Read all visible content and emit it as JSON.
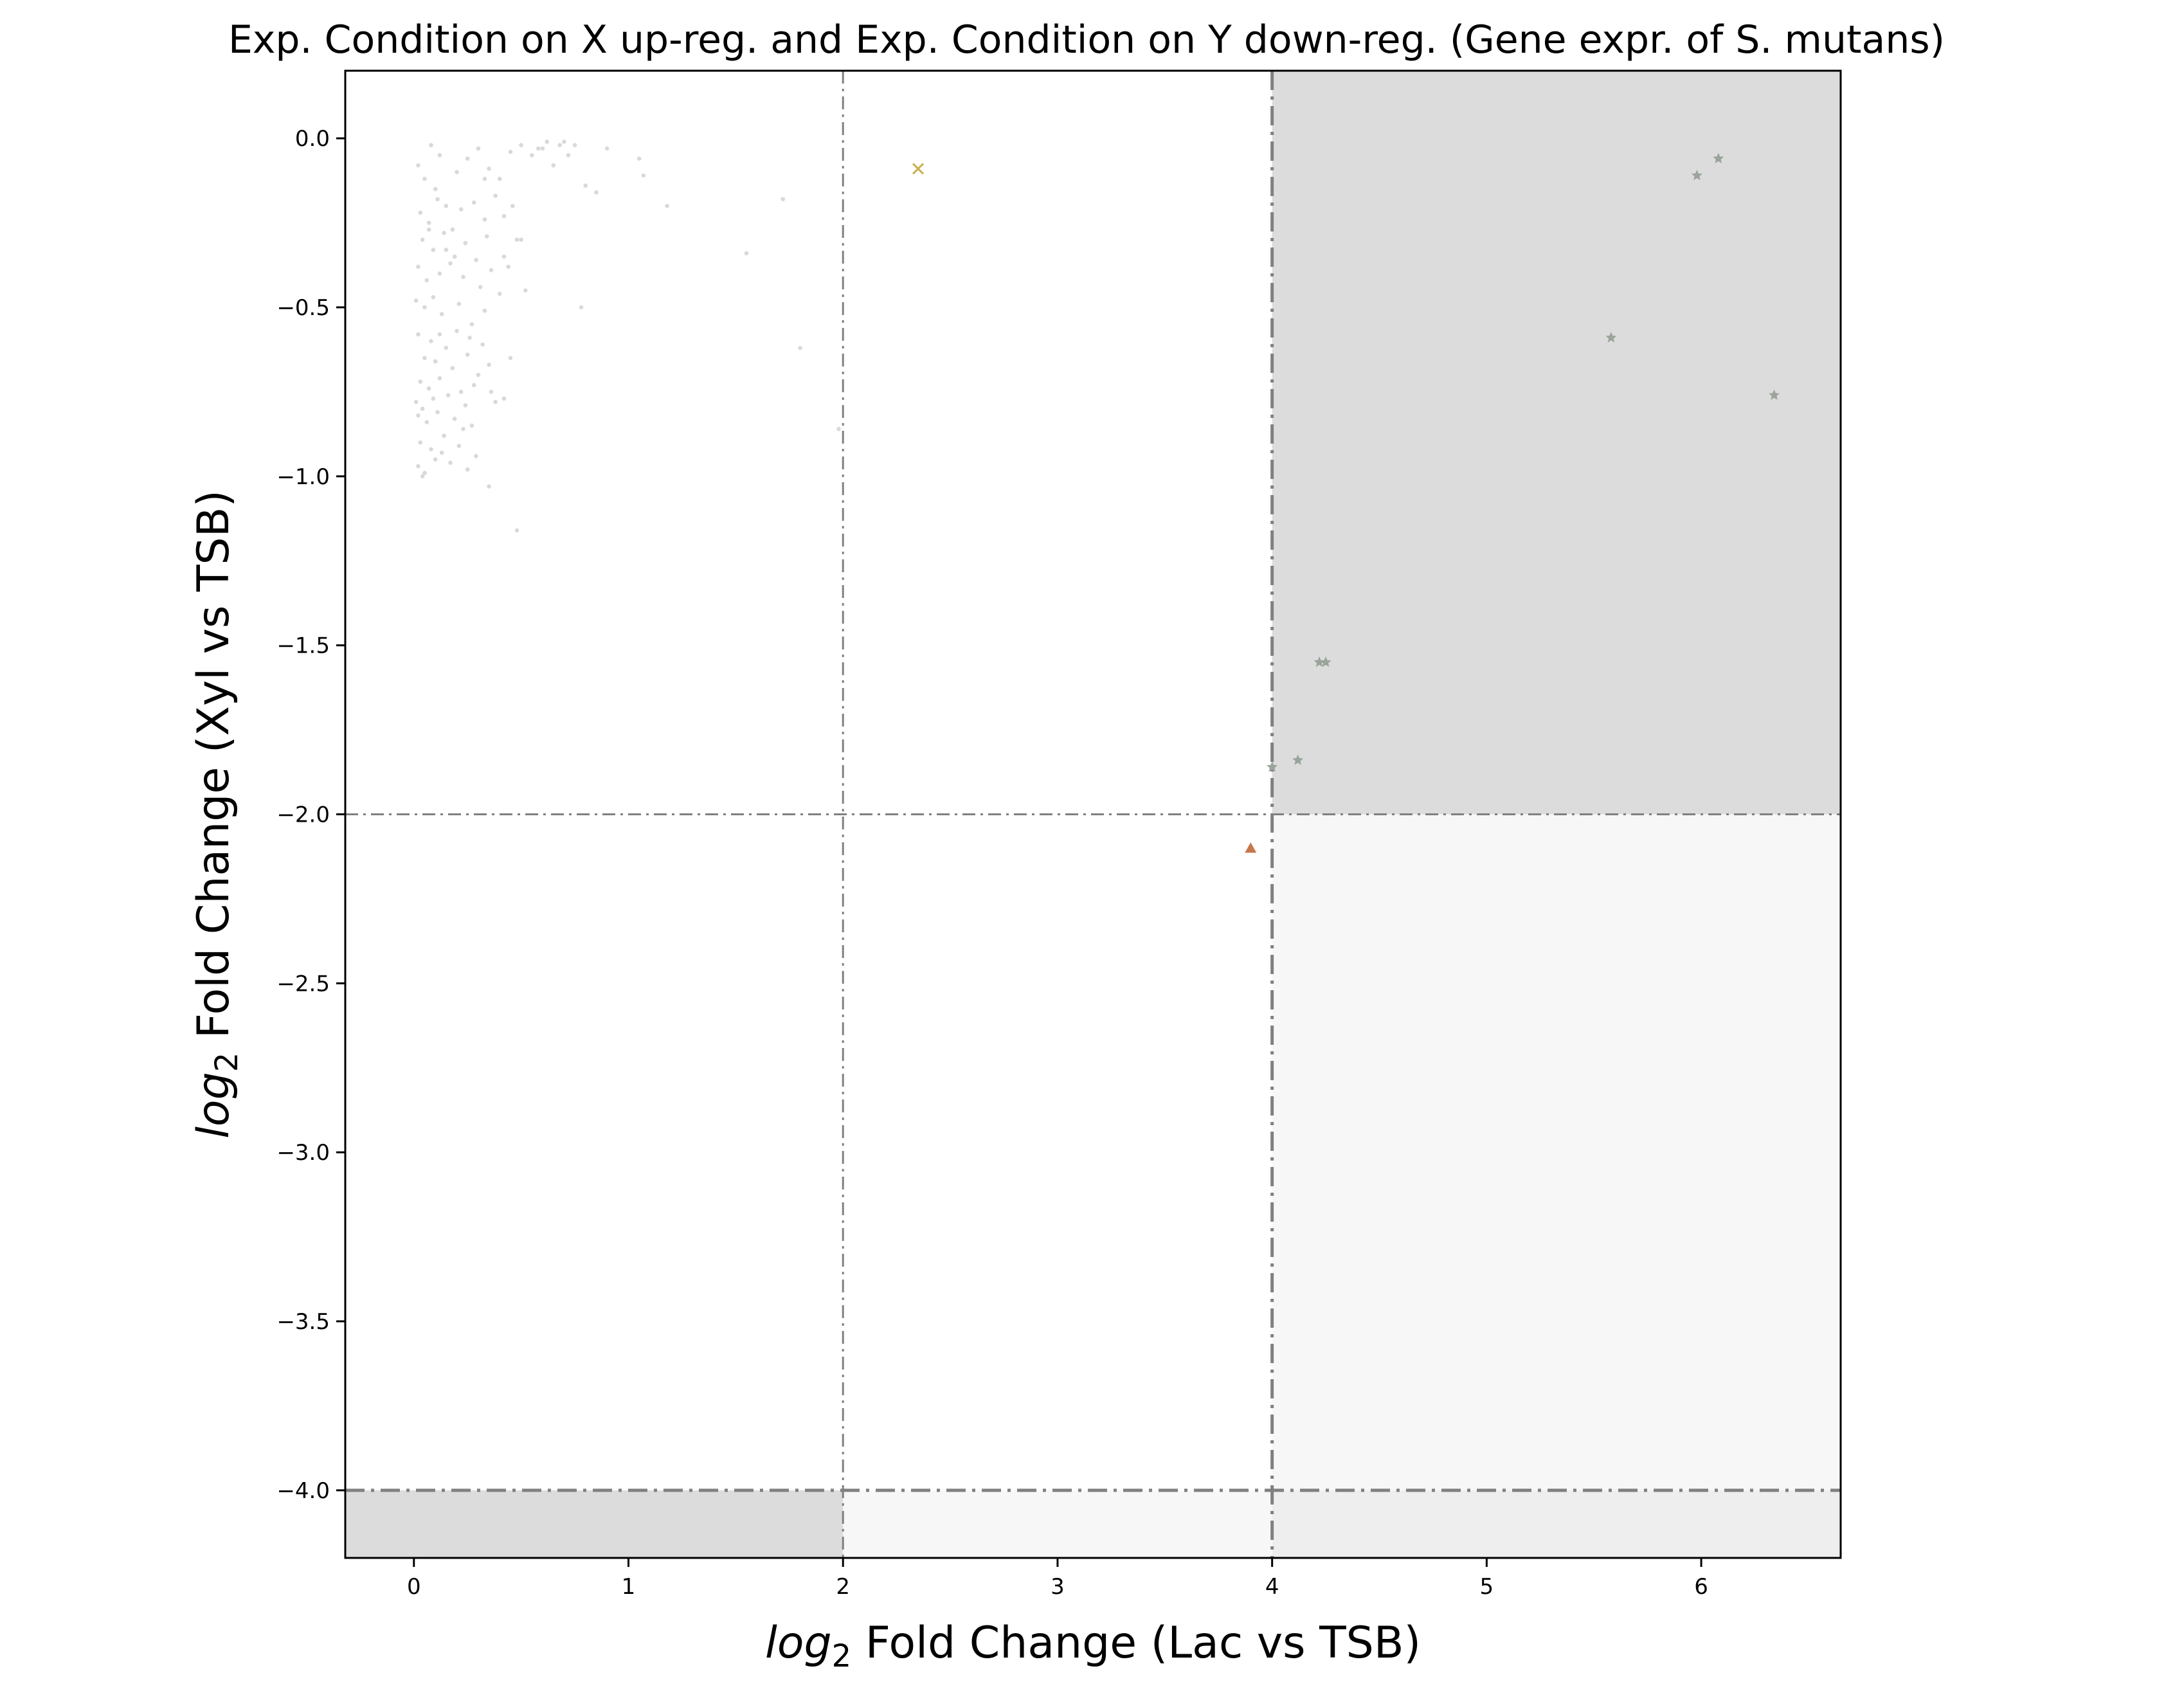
{
  "chart_data": {
    "type": "scatter",
    "title": "Exp. Condition on X up-reg. and Exp. Condition on Y down-reg. (Gene expr. of S. mutans)",
    "xlabel": {
      "math": "log",
      "sub": "2",
      "rest": " Fold Change (Lac vs TSB)"
    },
    "ylabel": {
      "math": "log",
      "sub": "2",
      "rest": " Fold Change (Xyl vs TSB)"
    },
    "xlim": [
      -0.32,
      6.65
    ],
    "ylim": [
      -4.2,
      0.2
    ],
    "xticks": [
      0,
      1,
      2,
      3,
      4,
      5,
      6
    ],
    "xtick_labels": [
      "0",
      "1",
      "2",
      "3",
      "4",
      "5",
      "6"
    ],
    "yticks": [
      0.0,
      -0.5,
      -1.0,
      -1.5,
      -2.0,
      -2.5,
      -3.0,
      -3.5,
      -4.0
    ],
    "ytick_labels": [
      "0.0",
      "−0.5",
      "−1.0",
      "−1.5",
      "−2.0",
      "−2.5",
      "−3.0",
      "−3.5",
      "−4.0"
    ],
    "grid": false,
    "legend": "none",
    "thresholds": {
      "vertical": [
        {
          "x": 2,
          "style": "thin"
        },
        {
          "x": 4,
          "style": "thick"
        }
      ],
      "horizontal": [
        {
          "y": -2,
          "style": "thin"
        },
        {
          "y": -4,
          "style": "thick"
        }
      ]
    },
    "regions": [
      {
        "x": [
          4,
          6.65
        ],
        "y": [
          -2,
          0.2
        ],
        "color": "#dcdcdc"
      },
      {
        "x": [
          4,
          6.65
        ],
        "y": [
          -4,
          -2
        ],
        "color": "#f7f7f7"
      },
      {
        "x": [
          4,
          6.65
        ],
        "y": [
          -4.2,
          -4
        ],
        "color": "#eeeeee"
      },
      {
        "x": [
          2,
          4
        ],
        "y": [
          -4.2,
          -4
        ],
        "color": "#f7f7f7"
      },
      {
        "x": [
          -0.32,
          2
        ],
        "y": [
          -4.2,
          -4
        ],
        "color": "#dcdcdc"
      }
    ],
    "series": [
      {
        "marker": "dot",
        "color": "#d9d9d9",
        "x": [
          0.02,
          0.05,
          0.08,
          0.1,
          0.12,
          0.15,
          0.2,
          0.25,
          0.3,
          0.35,
          0.4,
          0.45,
          0.5,
          0.55,
          0.6,
          0.65,
          0.7,
          0.75,
          0.8,
          0.03,
          0.07,
          0.11,
          0.18,
          0.22,
          0.28,
          0.33,
          0.38,
          0.42,
          0.48,
          0.04,
          0.09,
          0.14,
          0.19,
          0.24,
          0.29,
          0.34,
          0.02,
          0.06,
          0.12,
          0.17,
          0.23,
          0.31,
          0.36,
          0.44,
          0.52,
          0.01,
          0.05,
          0.09,
          0.13,
          0.21,
          0.27,
          0.33,
          0.4,
          0.02,
          0.08,
          0.15,
          0.2,
          0.26,
          0.32,
          0.05,
          0.1,
          0.18,
          0.25,
          0.3,
          0.35,
          0.03,
          0.07,
          0.12,
          0.22,
          0.28,
          0.01,
          0.04,
          0.09,
          0.16,
          0.24,
          0.38,
          0.02,
          0.06,
          0.11,
          0.19,
          0.27,
          0.42,
          0.03,
          0.08,
          0.14,
          0.21,
          0.29,
          0.02,
          0.05,
          0.1,
          0.17,
          0.25,
          0.35,
          0.04,
          0.13,
          0.23,
          0.07,
          0.15,
          0.33,
          0.12,
          0.45,
          0.58,
          0.62,
          0.68,
          0.72,
          0.85,
          0.9,
          1.05,
          1.07,
          1.18,
          1.55,
          1.72,
          1.8,
          1.98,
          0.48,
          0.5,
          0.78,
          0.36,
          0.42,
          0.46
        ],
        "y": [
          -0.08,
          -0.12,
          -0.02,
          -0.15,
          -0.05,
          -0.2,
          -0.1,
          -0.06,
          -0.03,
          -0.09,
          -0.12,
          -0.04,
          -0.02,
          -0.05,
          -0.03,
          -0.08,
          -0.01,
          -0.02,
          -0.14,
          -0.22,
          -0.25,
          -0.18,
          -0.27,
          -0.21,
          -0.19,
          -0.24,
          -0.17,
          -0.23,
          -0.3,
          -0.3,
          -0.33,
          -0.28,
          -0.35,
          -0.31,
          -0.36,
          -0.29,
          -0.38,
          -0.42,
          -0.4,
          -0.37,
          -0.41,
          -0.44,
          -0.39,
          -0.38,
          -0.45,
          -0.48,
          -0.5,
          -0.47,
          -0.52,
          -0.49,
          -0.55,
          -0.51,
          -0.46,
          -0.58,
          -0.6,
          -0.62,
          -0.57,
          -0.59,
          -0.61,
          -0.65,
          -0.66,
          -0.68,
          -0.64,
          -0.7,
          -0.67,
          -0.72,
          -0.74,
          -0.71,
          -0.75,
          -0.73,
          -0.78,
          -0.8,
          -0.77,
          -0.76,
          -0.79,
          -0.78,
          -0.82,
          -0.84,
          -0.81,
          -0.83,
          -0.85,
          -0.77,
          -0.9,
          -0.92,
          -0.88,
          -0.91,
          -0.94,
          -0.97,
          -0.99,
          -0.95,
          -0.96,
          -0.98,
          -1.03,
          -1.0,
          -0.93,
          -0.86,
          -0.27,
          -0.33,
          -0.12,
          -0.58,
          -0.65,
          -0.03,
          -0.01,
          -0.02,
          -0.05,
          -0.16,
          -0.03,
          -0.06,
          -0.11,
          -0.2,
          -0.34,
          -0.18,
          -0.62,
          -0.86,
          -1.16,
          -0.3,
          -0.5,
          -0.75,
          -0.35,
          -0.2
        ],
        "size": 6
      },
      {
        "marker": "x",
        "color": "#c9b14e",
        "x": [
          2.35
        ],
        "y": [
          -0.09
        ],
        "size": 8
      },
      {
        "marker": "triangle",
        "color": "#c8774a",
        "x": [
          3.9
        ],
        "y": [
          -2.1
        ],
        "size": 9
      },
      {
        "marker": "star",
        "color": "#9aa49a",
        "x": [
          4.0,
          4.12,
          4.22,
          4.25,
          5.58,
          5.98,
          6.08,
          6.34
        ],
        "y": [
          -1.86,
          -1.84,
          -1.55,
          -1.55,
          -0.59,
          -0.11,
          -0.06,
          -0.76
        ],
        "size": 9
      }
    ]
  }
}
